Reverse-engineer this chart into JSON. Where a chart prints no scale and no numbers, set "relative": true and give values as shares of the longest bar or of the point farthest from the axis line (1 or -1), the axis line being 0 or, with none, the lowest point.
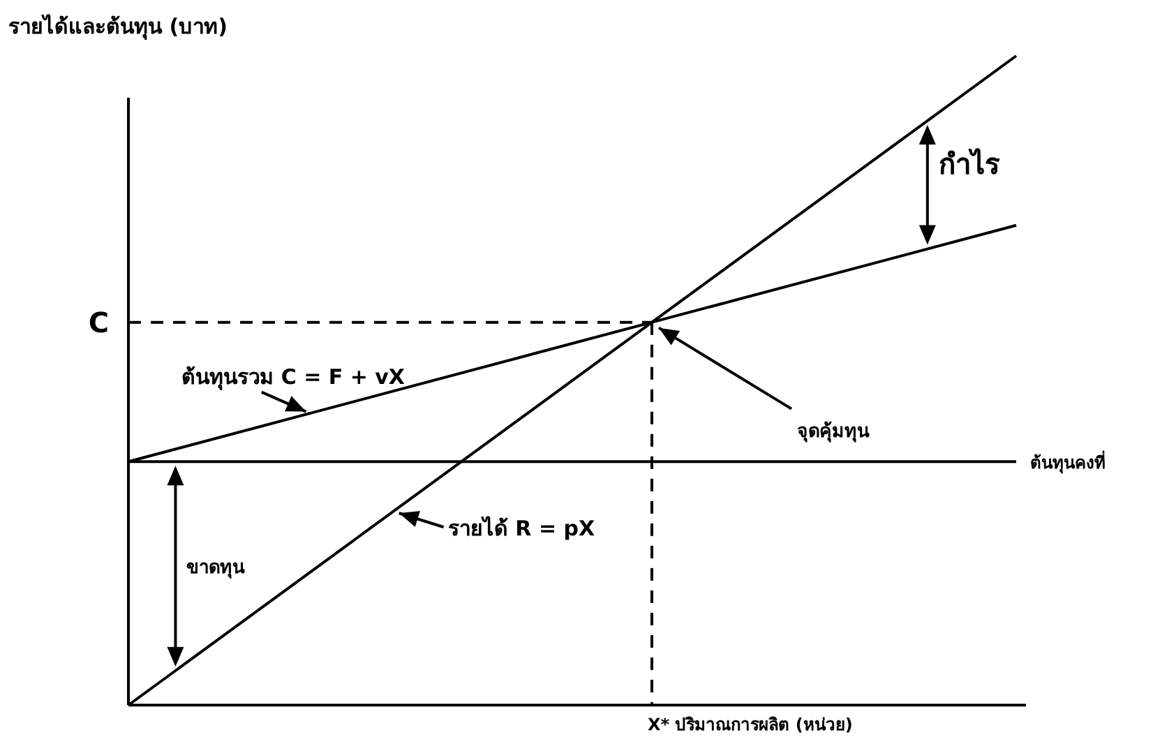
{
  "chart_data": {
    "type": "line",
    "relative": true,
    "ylabel": "รายได้และต้นทุน (บาท)",
    "xlabel": "X* ปริมาณการผลิต (หน่วย)",
    "categories": [
      null,
      null
    ],
    "series": [
      {
        "name": "ต้นทุนรวม C = F + vX",
        "color": "#000000",
        "values": [
          0.375,
          0.739
        ]
      },
      {
        "name": "รายได้ R = pX",
        "color": "#000000",
        "values": [
          0,
          1
        ]
      },
      {
        "name": "ต้นทุนคงที่",
        "color": "#000000",
        "values": [
          0.375,
          0.375
        ]
      }
    ],
    "annotations": [
      "จุดคุ้มทุน",
      "C",
      "กำไร",
      "ขาดทุน"
    ],
    "marker": "none",
    "line_style": "solid"
  }
}
